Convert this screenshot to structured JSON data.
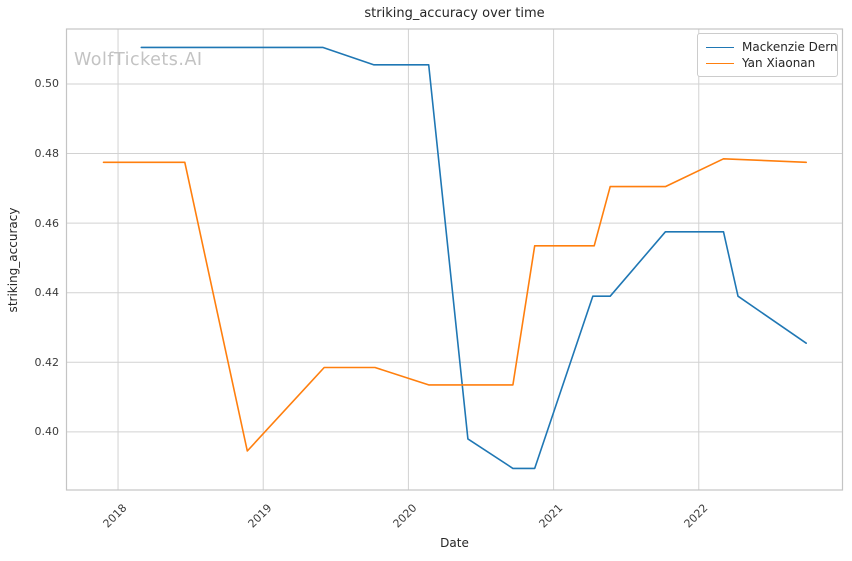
{
  "watermark": "WolfTickets.AI",
  "chart_data": {
    "type": "line",
    "title": "striking_accuracy over time",
    "xlabel": "Date",
    "ylabel": "striking_accuracy",
    "grid": true,
    "legend": {
      "position": "upper right",
      "entries": [
        "Mackenzie Dern",
        "Yan Xiaonan"
      ]
    },
    "x_axis": {
      "ticks": [
        2018,
        2019,
        2020,
        2021,
        2022
      ],
      "range": [
        2017.645,
        2022.99
      ],
      "unit": "year"
    },
    "y_axis": {
      "ticks": [
        0.4,
        0.42,
        0.44,
        0.46,
        0.48,
        0.5
      ],
      "range": [
        0.3833,
        0.5158
      ],
      "tick_decimals": 2
    },
    "series": [
      {
        "name": "Mackenzie Dern",
        "color": "#1f77b4",
        "x": [
          2018.16,
          2019.41,
          2019.76,
          2020.14,
          2020.41,
          2020.72,
          2020.87,
          2021.27,
          2021.39,
          2021.77,
          2022.17,
          2022.27,
          2022.74
        ],
        "y": [
          0.5105,
          0.5105,
          0.5055,
          0.5055,
          0.398,
          0.3895,
          0.3895,
          0.439,
          0.439,
          0.4575,
          0.4575,
          0.439,
          0.4255
        ]
      },
      {
        "name": "Yan Xiaonan",
        "color": "#ff7f0e",
        "x": [
          2017.9,
          2018.46,
          2018.89,
          2019.42,
          2019.77,
          2020.14,
          2020.72,
          2020.87,
          2021.28,
          2021.39,
          2021.77,
          2022.17,
          2022.74
        ],
        "y": [
          0.4775,
          0.4775,
          0.3945,
          0.4185,
          0.4185,
          0.4135,
          0.4135,
          0.4535,
          0.4535,
          0.4705,
          0.4705,
          0.4785,
          0.4775
        ]
      }
    ]
  }
}
